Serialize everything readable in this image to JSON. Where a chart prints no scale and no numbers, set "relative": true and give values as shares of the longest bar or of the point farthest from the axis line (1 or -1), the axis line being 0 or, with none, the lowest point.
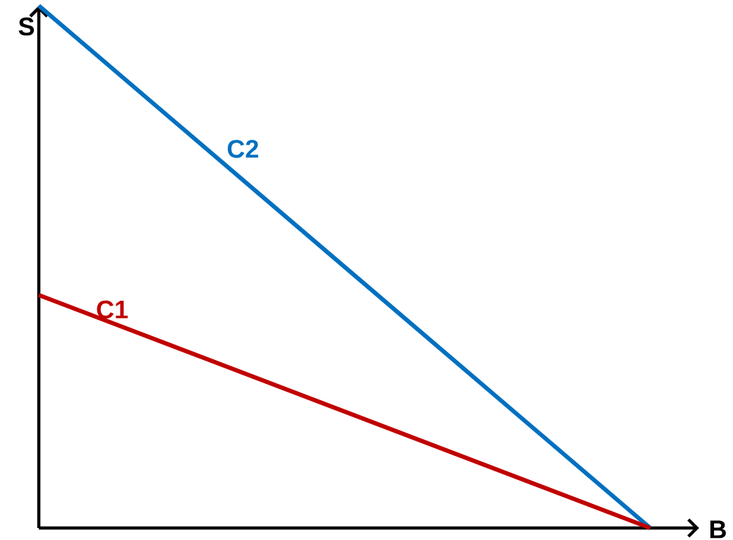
{
  "chart_data": {
    "type": "line",
    "relative": true,
    "xlabel": "B",
    "ylabel": "S",
    "categories": [
      null,
      null
    ],
    "series": [
      {
        "name": "C2",
        "color": "#0070c0",
        "values": [
          1,
          0
        ]
      },
      {
        "name": "C1",
        "color": "#c00000",
        "values": [
          0.446,
          0
        ]
      }
    ]
  }
}
